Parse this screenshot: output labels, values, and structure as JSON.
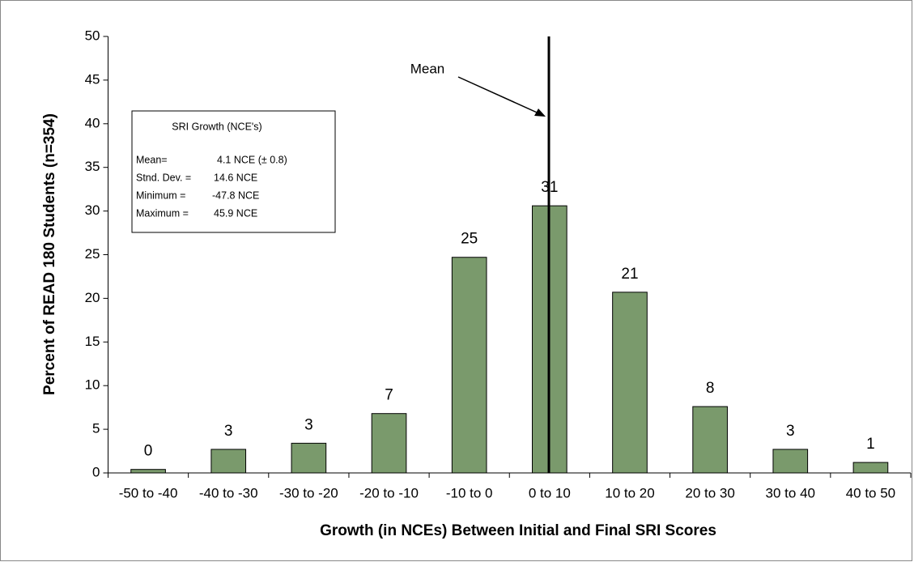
{
  "chart_data": {
    "type": "bar",
    "x_label": "Growth (in NCEs) Between Initial and Final SRI Scores",
    "y_label": "Percent of READ 180 Students (n=354)",
    "categories": [
      "-50 to -40",
      "-40 to -30",
      "-30 to -20",
      "-20 to -10",
      "-10 to 0",
      "0 to 10",
      "10 to 20",
      "20 to 30",
      "30 to 40",
      "40 to 50"
    ],
    "values": [
      0.4,
      2.7,
      3.4,
      6.8,
      24.7,
      30.6,
      20.7,
      7.6,
      2.7,
      1.2
    ],
    "value_labels": [
      "0",
      "3",
      "3",
      "7",
      "25",
      "31",
      "21",
      "8",
      "3",
      "1"
    ],
    "color": "#7a9a6c",
    "ylim": [
      0,
      50
    ],
    "yticks": [
      0,
      5,
      10,
      15,
      20,
      25,
      30,
      35,
      40,
      45,
      50
    ],
    "grid": false,
    "annotations": {
      "mean_label": "Mean",
      "box_title": "SRI Growth (NCE's)",
      "box_rows": [
        [
          "Mean=",
          "4.1 NCE (± 0.8)"
        ],
        [
          "Stnd. Dev. =",
          "14.6 NCE"
        ],
        [
          "Minimum =",
          "-47.8 NCE"
        ],
        [
          "Maximum =",
          "45.9 NCE"
        ]
      ]
    }
  }
}
